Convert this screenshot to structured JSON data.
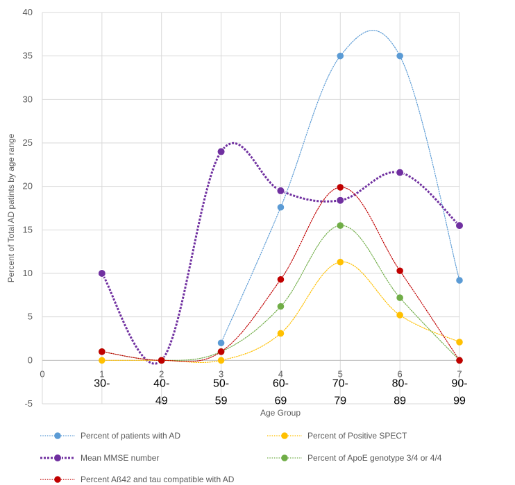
{
  "chart_data": {
    "type": "line",
    "xlabel": "Age Group",
    "ylabel": "Percent of Total AD patints by age range",
    "xlim": [
      0,
      7
    ],
    "ylim": [
      -5,
      40
    ],
    "xticks": [
      "0",
      "1",
      "2",
      "3",
      "4",
      "5",
      "6",
      "7"
    ],
    "yticks": [
      "-5",
      "0",
      "5",
      "10",
      "15",
      "20",
      "25",
      "30",
      "35",
      "40"
    ],
    "grid": true,
    "legend_position": "bottom",
    "age_labels": [
      {
        "x": 1,
        "lines": [
          "30-",
          ""
        ]
      },
      {
        "x": 2,
        "lines": [
          "40-",
          "49"
        ]
      },
      {
        "x": 3,
        "lines": [
          "50-",
          "59"
        ]
      },
      {
        "x": 4,
        "lines": [
          "60-",
          "69"
        ]
      },
      {
        "x": 5,
        "lines": [
          "70-",
          "79"
        ]
      },
      {
        "x": 6,
        "lines": [
          "80-",
          "89"
        ]
      },
      {
        "x": 7,
        "lines": [
          "90-",
          "99"
        ]
      }
    ],
    "x": [
      1,
      2,
      3,
      4,
      5,
      6,
      7
    ],
    "series": [
      {
        "name": "Percent of patients with AD",
        "color": "#5b9bd5",
        "style": "dotted-thin",
        "x": [
          3,
          4,
          5,
          6,
          7
        ],
        "values": [
          2,
          17.6,
          35,
          35,
          9.2
        ]
      },
      {
        "name": "Percent of Positive SPECT",
        "color": "#ffc000",
        "style": "dotted-thin",
        "x": [
          1,
          2,
          3,
          4,
          5,
          6,
          7
        ],
        "values": [
          0,
          0,
          0,
          3.1,
          11.3,
          5.2,
          2.1
        ]
      },
      {
        "name": "Mean MMSE number",
        "color": "#7030a0",
        "style": "dotted-thick",
        "x": [
          1,
          2,
          3,
          4,
          5,
          6,
          7
        ],
        "values": [
          10,
          0,
          24,
          19.5,
          18.4,
          21.6,
          15.5
        ]
      },
      {
        "name": "Percent of ApoE genotype 3/4 or 4/4",
        "color": "#70ad47",
        "style": "dotted-thin",
        "x": [
          1,
          2,
          3,
          4,
          5,
          6,
          7
        ],
        "values": [
          1,
          0,
          1,
          6.2,
          15.5,
          7.2,
          0
        ]
      },
      {
        "name": "Percent Aß42 and tau compatible with AD",
        "color": "#c00000",
        "style": "dotted-thin",
        "x": [
          1,
          2,
          3,
          4,
          5,
          6,
          7
        ],
        "values": [
          1,
          0,
          1,
          9.3,
          19.9,
          10.3,
          0
        ]
      }
    ]
  }
}
